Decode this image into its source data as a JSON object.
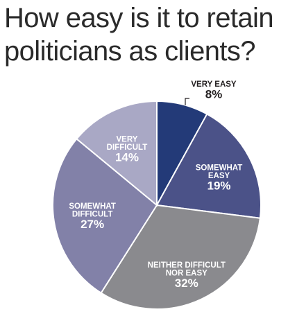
{
  "chart_data": {
    "type": "pie",
    "title": "How easy is it to retain politicians as clients?",
    "title_lines": [
      "How easy is it to retain",
      "politicians as clients?"
    ],
    "slices": [
      {
        "label_lines": [
          "VERY EASY"
        ],
        "label": "VERY EASY",
        "value": 8,
        "value_label": "8%",
        "color": "#233a78",
        "text_color": "#231f20"
      },
      {
        "label_lines": [
          "SOMEWHAT",
          "EASY"
        ],
        "label": "SOMEWHAT EASY",
        "value": 19,
        "value_label": "19%",
        "color": "#4b5288",
        "text_color": "#ffffff"
      },
      {
        "label_lines": [
          "NEITHER DIFFICULT",
          "NOR EASY"
        ],
        "label": "NEITHER DIFFICULT NOR EASY",
        "value": 32,
        "value_label": "32%",
        "color": "#8a8a8e",
        "text_color": "#ffffff"
      },
      {
        "label_lines": [
          "SOMEWHAT",
          "DIFFICULT"
        ],
        "label": "SOMEWHAT DIFFICULT",
        "value": 27,
        "value_label": "27%",
        "color": "#8281a8",
        "text_color": "#ffffff"
      },
      {
        "label_lines": [
          "VERY",
          "DIFFICULT"
        ],
        "label": "VERY DIFFICULT",
        "value": 14,
        "value_label": "14%",
        "color": "#a9a8c5",
        "text_color": "#ffffff"
      }
    ]
  }
}
